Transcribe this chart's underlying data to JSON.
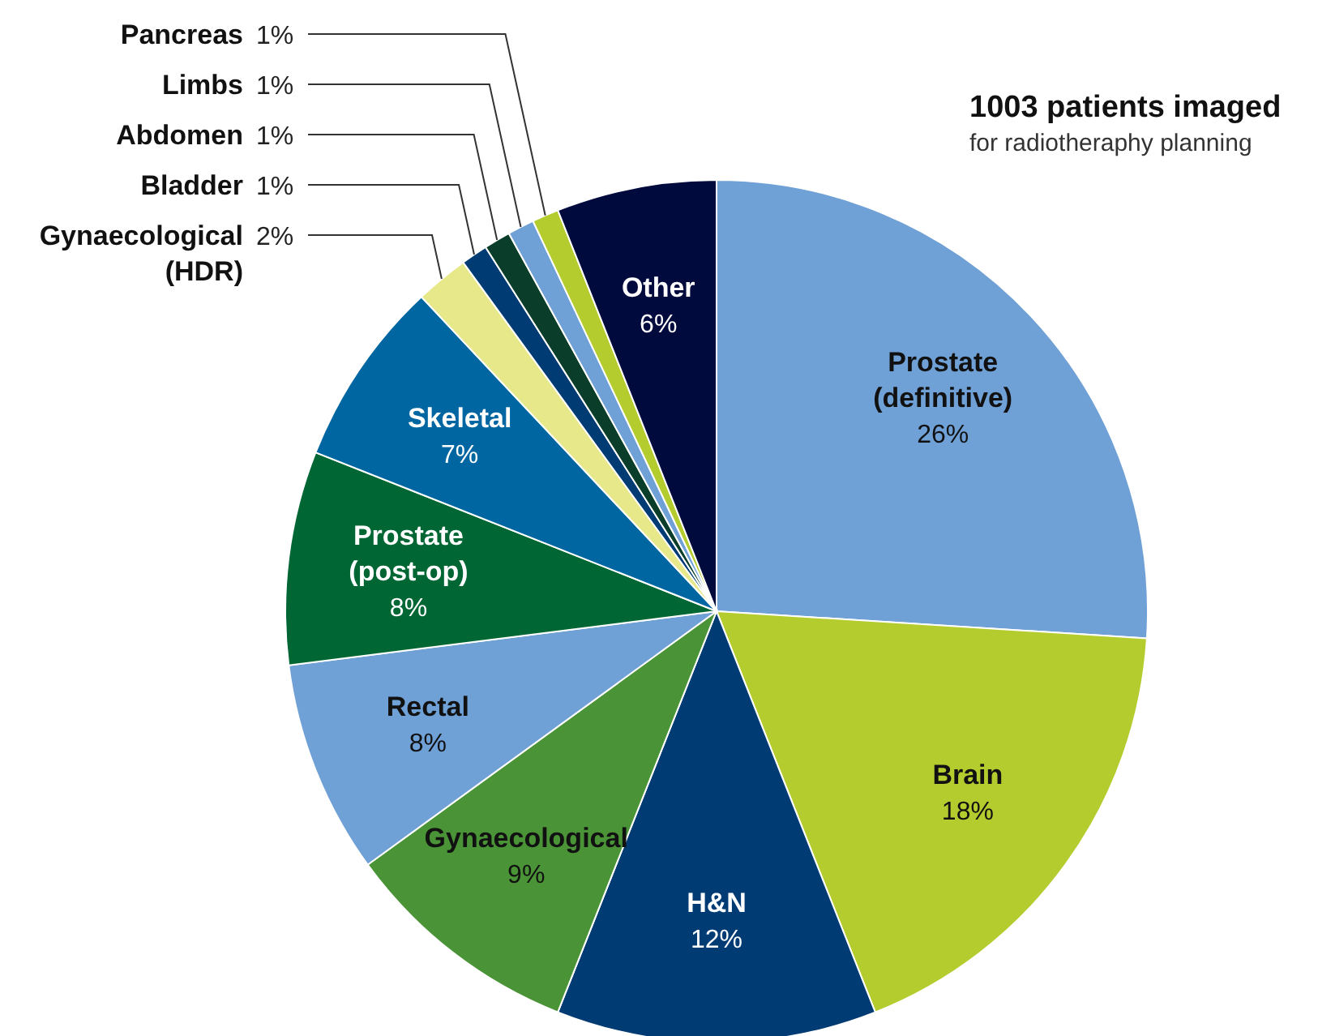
{
  "chart_data": {
    "type": "pie",
    "title": "1003 patients imaged",
    "subtitle": "for radiotheraphy planning",
    "categories": [
      "Prostate (definitive)",
      "Brain",
      "H&N",
      "Gynaecological",
      "Rectal",
      "Prostate (post-op)",
      "Skeletal",
      "Gynaecological (HDR)",
      "Bladder",
      "Abdomen",
      "Limbs",
      "Pancreas",
      "Other"
    ],
    "values": [
      26,
      18,
      12,
      9,
      8,
      8,
      7,
      2,
      1,
      1,
      1,
      1,
      6
    ],
    "value_labels": [
      "26%",
      "18%",
      "12%",
      "9%",
      "8%",
      "8%",
      "7%",
      "2%",
      "1%",
      "1%",
      "1%",
      "1%",
      "6%"
    ],
    "colors": [
      "#6fa0d6",
      "#b5cc2e",
      "#003b73",
      "#4a9437",
      "#6fa0d6",
      "#006633",
      "#0066a1",
      "#e6e88a",
      "#003b73",
      "#0a3d2a",
      "#6fa0d6",
      "#b5cc2e",
      "#000a3d"
    ],
    "legend": false
  }
}
